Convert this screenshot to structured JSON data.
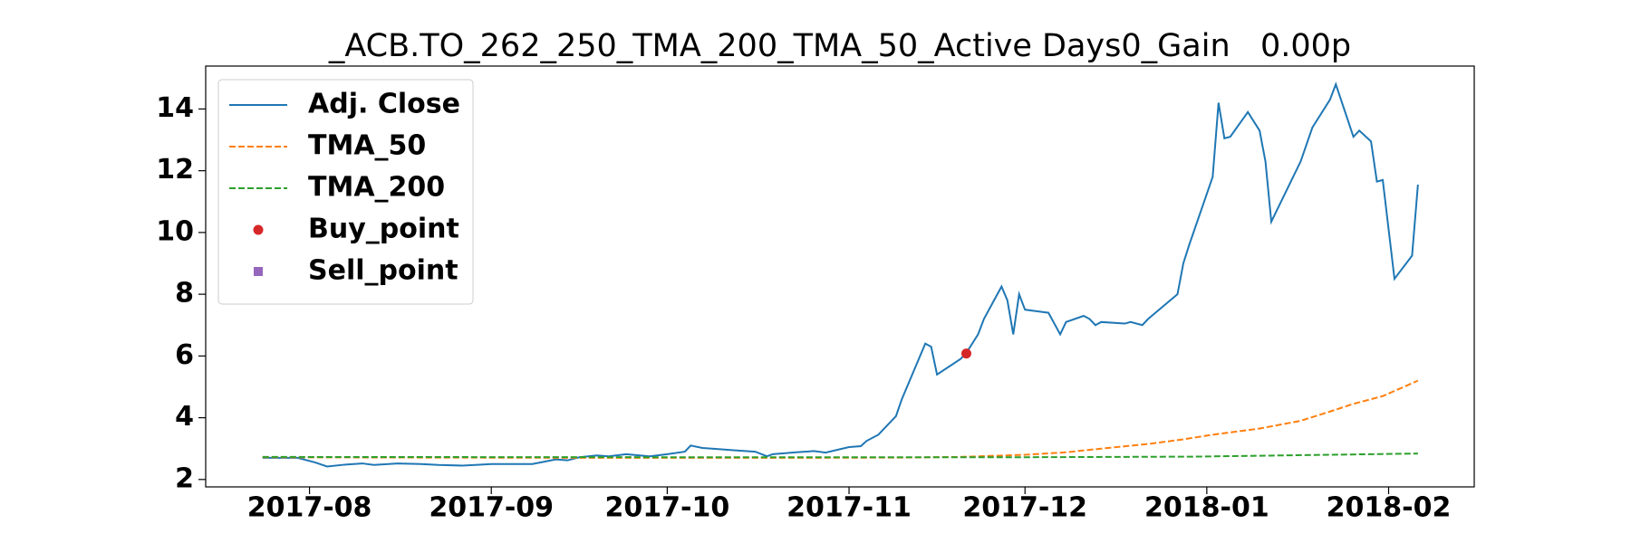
{
  "chart_data": {
    "type": "line",
    "title": "_ACB.TO_262_250_TMA_200_TMA_50_Active Days0_Gain   0.00p",
    "xlim": [
      17361.3,
      17577.6
    ],
    "xticks": [
      {
        "value": 17379,
        "label": "2017-08"
      },
      {
        "value": 17410,
        "label": "2017-09"
      },
      {
        "value": 17440,
        "label": "2017-10"
      },
      {
        "value": 17471,
        "label": "2017-11"
      },
      {
        "value": 17501,
        "label": "2017-12"
      },
      {
        "value": 17532,
        "label": "2018-01"
      },
      {
        "value": 17563,
        "label": "2018-02"
      }
    ],
    "ylim": [
      1.76,
      15.39
    ],
    "yticks": [
      2,
      4,
      6,
      8,
      10,
      12,
      14
    ],
    "legend": "upper left",
    "series": [
      {
        "name": "Adj. Close",
        "type": "line",
        "color": "#1f77b4",
        "dash": false,
        "x": [
          17371,
          17377,
          17380,
          17382,
          17385,
          17388,
          17390,
          17394,
          17398,
          17401,
          17405,
          17408,
          17410,
          17414,
          17417,
          17421,
          17423,
          17425,
          17428,
          17430,
          17433,
          17437,
          17440,
          17443,
          17444,
          17446,
          17449,
          17451,
          17455,
          17457,
          17458,
          17462,
          17465,
          17467,
          17471,
          17473,
          17474,
          17476,
          17478,
          17479,
          17480,
          17484,
          17485,
          17486,
          17490,
          17491,
          17493,
          17494,
          17497,
          17498,
          17499,
          17500,
          17501,
          17505,
          17507,
          17508,
          17511,
          17512,
          17513,
          17514,
          17518,
          17519,
          17521,
          17522,
          17527,
          17528,
          17529,
          17533,
          17534,
          17535,
          17536,
          17539,
          17541,
          17542,
          17543,
          17548,
          17550,
          17553,
          17554,
          17557,
          17558,
          17560,
          17561,
          17562,
          17564,
          17567,
          17568
        ],
        "values": [
          2.7,
          2.7,
          2.55,
          2.42,
          2.48,
          2.52,
          2.47,
          2.52,
          2.5,
          2.47,
          2.45,
          2.48,
          2.5,
          2.5,
          2.5,
          2.65,
          2.62,
          2.72,
          2.78,
          2.75,
          2.82,
          2.75,
          2.82,
          2.9,
          3.1,
          3.02,
          2.98,
          2.95,
          2.9,
          2.75,
          2.82,
          2.88,
          2.92,
          2.87,
          3.05,
          3.08,
          3.25,
          3.45,
          3.85,
          4.05,
          4.6,
          6.4,
          6.3,
          5.4,
          5.9,
          6.1,
          6.7,
          7.2,
          8.25,
          7.8,
          6.7,
          8.0,
          7.5,
          7.4,
          6.7,
          7.1,
          7.3,
          7.2,
          7.0,
          7.1,
          7.05,
          7.1,
          7.0,
          7.2,
          8.0,
          9.0,
          9.6,
          11.8,
          14.2,
          13.05,
          13.1,
          13.9,
          13.3,
          12.3,
          10.35,
          12.3,
          13.4,
          14.3,
          14.8,
          13.1,
          13.3,
          12.95,
          11.65,
          11.7,
          8.5,
          9.25,
          11.55
        ]
      },
      {
        "name": "TMA_50",
        "type": "line",
        "color": "#ff7f0e",
        "dash": true,
        "x": [
          17371,
          17400,
          17430,
          17460,
          17480,
          17490,
          17501,
          17508,
          17514,
          17522,
          17528,
          17533,
          17541,
          17548,
          17553,
          17557,
          17562,
          17565,
          17568
        ],
        "values": [
          2.72,
          2.71,
          2.7,
          2.7,
          2.71,
          2.73,
          2.8,
          2.88,
          3.0,
          3.15,
          3.3,
          3.45,
          3.65,
          3.9,
          4.2,
          4.45,
          4.7,
          4.95,
          5.2
        ]
      },
      {
        "name": "TMA_200",
        "type": "line",
        "color": "#2ca02c",
        "dash": true,
        "x": [
          17371,
          17450,
          17500,
          17530,
          17568
        ],
        "values": [
          2.73,
          2.72,
          2.72,
          2.74,
          2.84
        ]
      },
      {
        "name": "Buy_point",
        "type": "scatter",
        "marker": "circle",
        "color": "#d62728",
        "x": [
          17491
        ],
        "values": [
          6.08
        ]
      },
      {
        "name": "Sell_point",
        "type": "scatter",
        "marker": "square",
        "color": "#9467bd",
        "x": [],
        "values": []
      }
    ]
  }
}
